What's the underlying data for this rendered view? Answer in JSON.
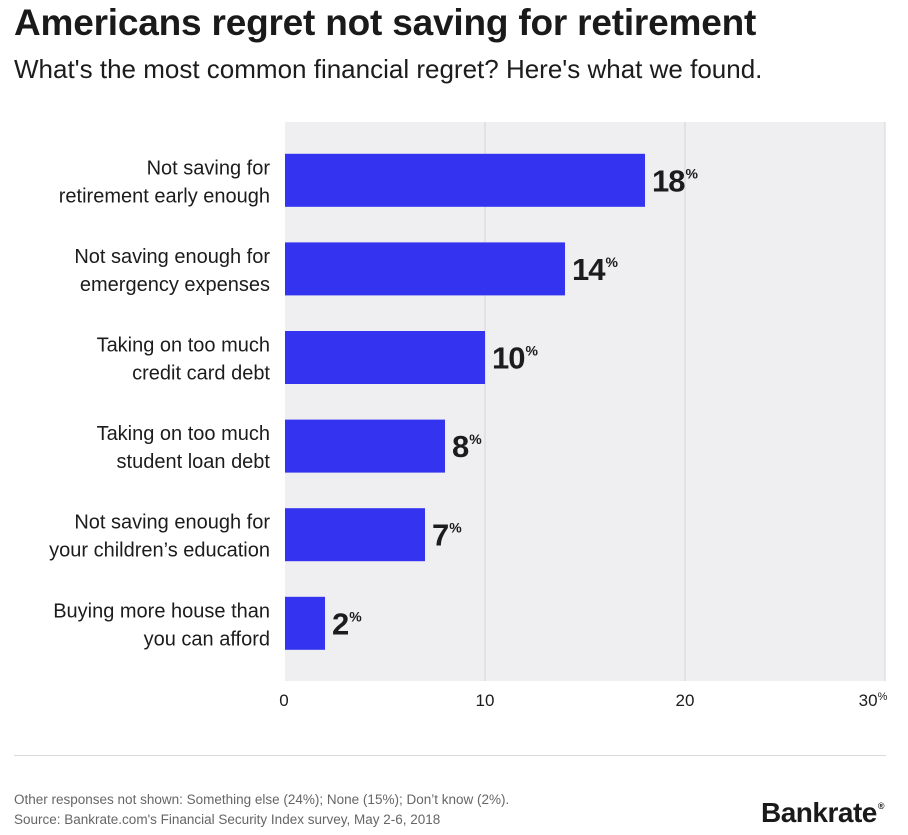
{
  "header": {
    "title": "Americans regret not saving for retirement",
    "subtitle": "What's the most common financial regret? Here's what we found."
  },
  "chart_data": {
    "type": "bar",
    "orientation": "horizontal",
    "categories": [
      [
        "Not saving for",
        "retirement early enough"
      ],
      [
        "Not saving enough for",
        "emergency expenses"
      ],
      [
        "Taking on too much",
        "credit card debt"
      ],
      [
        "Taking on too much",
        "student loan debt"
      ],
      [
        "Not saving enough for",
        "your children’s education"
      ],
      [
        "Buying more house than",
        "you can afford"
      ]
    ],
    "values": [
      18,
      14,
      10,
      8,
      7,
      2
    ],
    "value_suffix": "%",
    "xlim": [
      0,
      30
    ],
    "x_ticks": [
      0,
      10,
      20,
      30
    ],
    "x_tick_labels": [
      "0",
      "10",
      "20",
      "30"
    ],
    "last_tick_suffix": "%",
    "grid": true,
    "bar_color": "#3333f0",
    "plot_background": "#efeff2"
  },
  "footer": {
    "note": "Other responses not shown: Something else (24%); None (15%); Don’t know (2%).",
    "source": "Source: Bankrate.com's Financial Security Index survey, May 2-6, 2018",
    "brand": "Bankrate",
    "brand_mark": "®"
  }
}
